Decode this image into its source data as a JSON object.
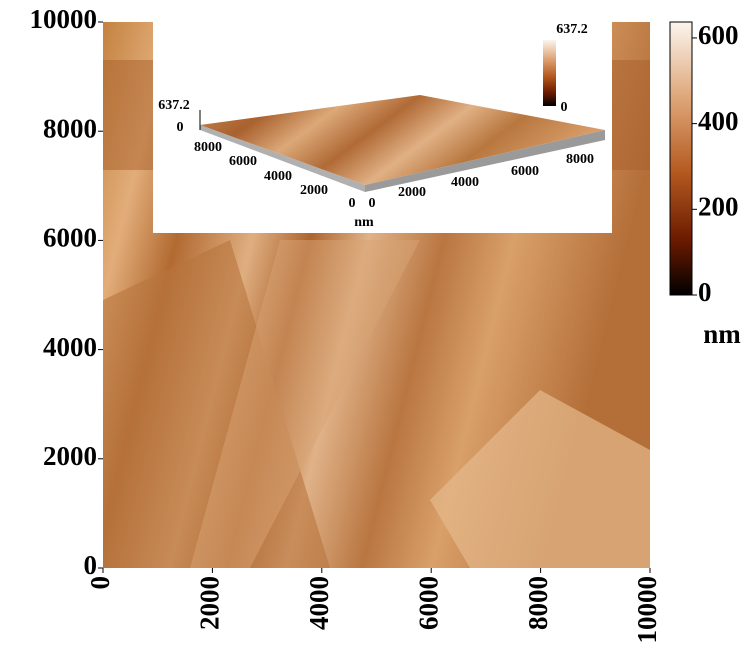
{
  "chart_data": {
    "type": "image",
    "xlim": [
      0,
      10000
    ],
    "ylim": [
      0,
      10000
    ],
    "xticks": [
      0,
      2000,
      4000,
      6000,
      8000,
      10000
    ],
    "yticks": [
      0,
      2000,
      4000,
      6000,
      8000,
      10000
    ],
    "colorbar": {
      "lim": [
        0,
        637.2
      ],
      "ticks": [
        0,
        200,
        400,
        600
      ],
      "unit": "nm"
    },
    "inset": {
      "zticks": [
        637.2,
        0
      ],
      "yticks": [
        8000,
        6000,
        4000,
        2000,
        0
      ],
      "xticks": [
        0,
        2000,
        4000,
        6000,
        8000
      ],
      "unit": "nm",
      "colorbar_ticks": [
        637.2,
        0
      ]
    }
  }
}
